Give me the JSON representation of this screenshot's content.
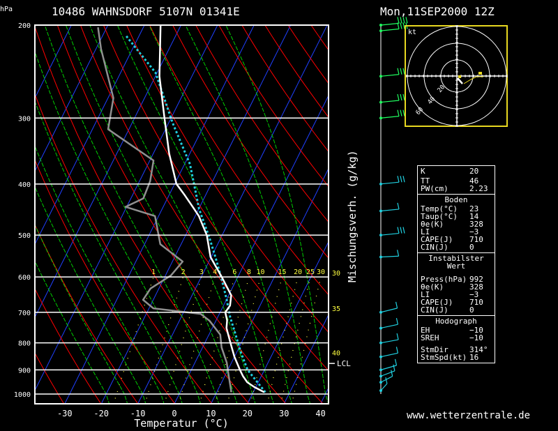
{
  "header": {
    "units": "hPa",
    "station": "10486 WAHNSDORF 5107N 01341E",
    "datetime": "Mon,11SEP2000 12Z"
  },
  "footer": {
    "source": "www.wetterzentrale.de"
  },
  "colors": {
    "isotherm": "#2040ff",
    "dry_adiabat": "#ff0000",
    "moist_adiabat": "#00d000",
    "mixing_ratio": "#ffff40",
    "temperature": "#ffffff",
    "dewpoint": "#909090",
    "parcel": "#20d0e0",
    "hodo_frame": "#e8d820",
    "wind": "#20d0e0",
    "wind_upper": "#20ff60"
  },
  "chart_data": {
    "type": "skew-t log-p",
    "xlabel": "Temperatur (°C)",
    "ylabel": "hPa",
    "mixing_ratio_axis_label": "Mischungsverh. (g/kg)",
    "xlim": [
      -38,
      42
    ],
    "plim": [
      1000,
      200
    ],
    "x_ticks": [
      -30,
      -20,
      -10,
      0,
      10,
      20,
      30,
      40
    ],
    "p_ticks": [
      200,
      300,
      400,
      500,
      600,
      700,
      800,
      900,
      1000
    ],
    "mixing_ratio_labels": [
      "1",
      "2",
      "3",
      "4",
      "6",
      "8",
      "10",
      "15",
      "20",
      "25",
      "30"
    ],
    "mixing_ratio_values": [
      1,
      2,
      3,
      4,
      6,
      8,
      10,
      15,
      20,
      25,
      30
    ],
    "right_labels": [
      {
        "p": 600,
        "text": "30"
      },
      {
        "p": 700,
        "text": "35"
      },
      {
        "p": 850,
        "text": "40"
      }
    ],
    "lcl": {
      "p": 875,
      "label": "LCL"
    },
    "temperature": [
      [
        992,
        23
      ],
      [
        970,
        19.6
      ],
      [
        950,
        17
      ],
      [
        925,
        15
      ],
      [
        900,
        13.3
      ],
      [
        850,
        10
      ],
      [
        800,
        7
      ],
      [
        750,
        3.9
      ],
      [
        725,
        3
      ],
      [
        700,
        1.4
      ],
      [
        680,
        1.8
      ],
      [
        650,
        0.7
      ],
      [
        600,
        -4.4
      ],
      [
        550,
        -10.2
      ],
      [
        500,
        -14.2
      ],
      [
        460,
        -19
      ],
      [
        445,
        -21.4
      ],
      [
        420,
        -25.7
      ],
      [
        400,
        -29.5
      ],
      [
        350,
        -35.7
      ],
      [
        300,
        -41.8
      ],
      [
        250,
        -48.9
      ],
      [
        200,
        -55.6
      ]
    ],
    "dewpoint": [
      [
        992,
        14
      ],
      [
        927,
        11.2
      ],
      [
        872,
        8.7
      ],
      [
        816,
        5.2
      ],
      [
        772,
        3.1
      ],
      [
        726,
        -1.8
      ],
      [
        705,
        -5.1
      ],
      [
        688,
        -18.8
      ],
      [
        663,
        -22.8
      ],
      [
        631,
        -22.3
      ],
      [
        596,
        -18.5
      ],
      [
        561,
        -17.2
      ],
      [
        520,
        -25.7
      ],
      [
        460,
        -31
      ],
      [
        442,
        -40.3
      ],
      [
        426,
        -36.6
      ],
      [
        395,
        -37.1
      ],
      [
        361,
        -39
      ],
      [
        315,
        -55.7
      ],
      [
        275,
        -58.5
      ],
      [
        222,
        -68.6
      ],
      [
        202,
        -72.4
      ]
    ],
    "parcel": [
      [
        992,
        23.3
      ],
      [
        900,
        15.4
      ],
      [
        833,
        11.1
      ],
      [
        772,
        7.3
      ],
      [
        715,
        3.4
      ],
      [
        663,
        0.1
      ],
      [
        606,
        -4.1
      ],
      [
        554,
        -8.5
      ],
      [
        504,
        -13.3
      ],
      [
        446,
        -19.9
      ],
      [
        367,
        -28.5
      ],
      [
        306,
        -39
      ],
      [
        246,
        -50.5
      ],
      [
        209,
        -63.8
      ]
    ],
    "winds": [
      [
        985,
        200,
        10
      ],
      [
        950,
        220,
        10
      ],
      [
        925,
        230,
        10
      ],
      [
        900,
        240,
        10
      ],
      [
        850,
        250,
        10
      ],
      [
        800,
        255,
        10
      ],
      [
        750,
        250,
        10
      ],
      [
        700,
        245,
        10
      ],
      [
        550,
        280,
        10
      ],
      [
        500,
        270,
        25
      ],
      [
        450,
        270,
        10
      ],
      [
        400,
        270,
        25
      ],
      [
        300,
        270,
        30
      ],
      [
        280,
        270,
        30
      ],
      [
        250,
        270,
        30
      ],
      [
        205,
        270,
        35
      ],
      [
        200,
        270,
        35
      ]
    ]
  },
  "hodograph": {
    "unit_label": "kt",
    "ring_labels": [
      "20",
      "40",
      "60"
    ]
  },
  "stats": {
    "k_label": "K",
    "k": "20",
    "tt_label": "TT",
    "tt": "46",
    "pw_label": "PW(cm)",
    "pw": "2.23",
    "boden": {
      "title": "Boden",
      "temp_label": "Temp(°C)",
      "temp": "23",
      "taup_label": "Taup(°C)",
      "taup": "14",
      "thetae_label": "θe(K)",
      "thetae": "328",
      "li_label": "LI",
      "li": "−3",
      "cape_label": "CAPE(J)",
      "cape": "710",
      "cin_label": "CIN(J)",
      "cin": "0"
    },
    "instab": {
      "title": "Instabilster Wert",
      "press_label": "Press(hPa)",
      "press": "992",
      "thetae_label": "θe(K)",
      "thetae": "328",
      "li_label": "LI",
      "li": "−3",
      "cape_label": "CAPE(J)",
      "cape": "710",
      "cin_label": "CIN(J)",
      "cin": "0"
    },
    "hodo": {
      "title": "Hodograph",
      "eh_label": "EH",
      "eh": "−10",
      "sreh_label": "SREH",
      "sreh": "−10",
      "dir_label": "StmDir",
      "dir": "314°",
      "spd_label": "StmSpd(kt)",
      "spd": "16"
    }
  }
}
